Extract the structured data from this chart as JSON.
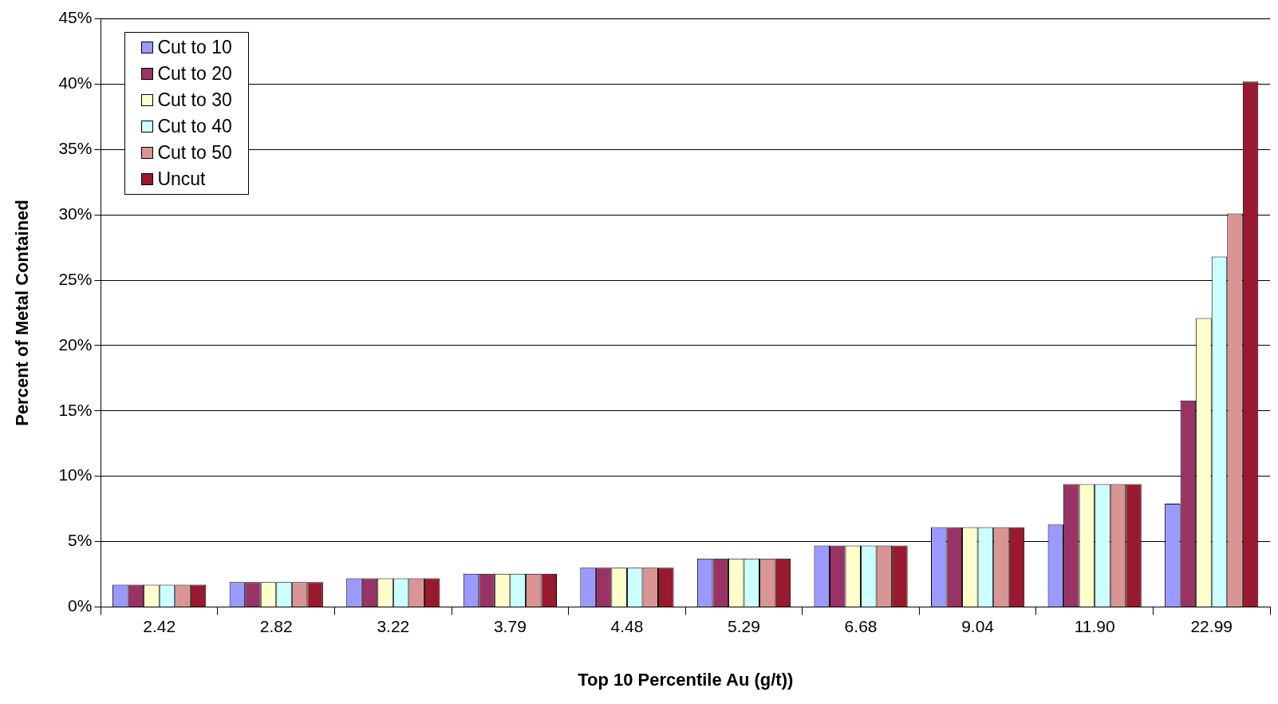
{
  "chart_data": {
    "type": "bar",
    "xlabel": "Top 10 Percentile Au (g/t))",
    "ylabel": "Percent of Metal Contained",
    "categories": [
      "2.42",
      "2.82",
      "3.22",
      "3.79",
      "4.48",
      "5.29",
      "6.68",
      "9.04",
      "11.90",
      "22.99"
    ],
    "series": [
      {
        "name": "Cut to 10",
        "color": "#9999ff",
        "values": [
          1.7,
          1.9,
          2.2,
          2.55,
          3.0,
          3.7,
          4.7,
          6.1,
          6.3,
          7.9
        ]
      },
      {
        "name": "Cut to 20",
        "color": "#993366",
        "values": [
          1.7,
          1.9,
          2.2,
          2.55,
          3.0,
          3.7,
          4.7,
          6.1,
          9.4,
          15.8
        ]
      },
      {
        "name": "Cut to 30",
        "color": "#ffffcc",
        "values": [
          1.7,
          1.9,
          2.2,
          2.55,
          3.0,
          3.7,
          4.7,
          6.1,
          9.4,
          22.1
        ]
      },
      {
        "name": "Cut to 40",
        "color": "#ccffff",
        "values": [
          1.7,
          1.9,
          2.2,
          2.55,
          3.0,
          3.7,
          4.7,
          6.1,
          9.4,
          26.8
        ]
      },
      {
        "name": "Cut to 50",
        "color": "#d99594",
        "values": [
          1.7,
          1.9,
          2.2,
          2.55,
          3.0,
          3.7,
          4.7,
          6.1,
          9.4,
          30.1
        ]
      },
      {
        "name": "Uncut",
        "color": "#99192e",
        "values": [
          1.7,
          1.9,
          2.2,
          2.55,
          3.0,
          3.7,
          4.7,
          6.1,
          9.4,
          40.2
        ]
      }
    ],
    "ylim": [
      0,
      45
    ],
    "yticks": [
      {
        "value": 0,
        "label": "0%"
      },
      {
        "value": 5,
        "label": "5%"
      },
      {
        "value": 10,
        "label": "10%"
      },
      {
        "value": 15,
        "label": "15%"
      },
      {
        "value": 20,
        "label": "20%"
      },
      {
        "value": 25,
        "label": "25%"
      },
      {
        "value": 30,
        "label": "30%"
      },
      {
        "value": 35,
        "label": "35%"
      },
      {
        "value": 40,
        "label": "40%"
      },
      {
        "value": 45,
        "label": "45%"
      }
    ],
    "grid": "y",
    "legend": "top left"
  }
}
